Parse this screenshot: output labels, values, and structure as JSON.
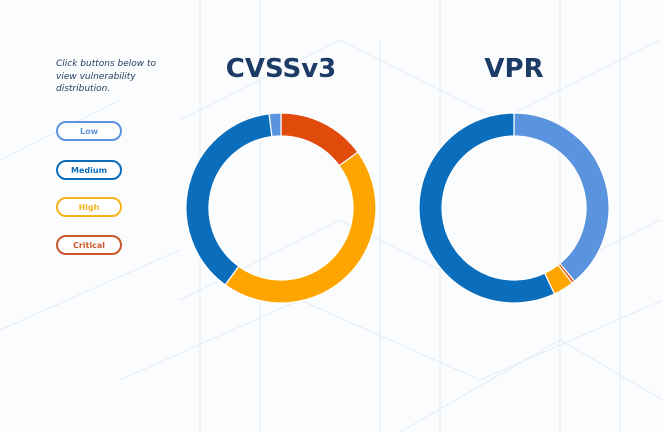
{
  "intro_text": "Click buttons below to view vulnerability distribution.",
  "buttons": [
    {
      "label": "Low",
      "color": "#5a93de"
    },
    {
      "label": "Medium",
      "color": "#0a6ebd"
    },
    {
      "label": "High",
      "color": "#f7b21b"
    },
    {
      "label": "Critical",
      "color": "#c9582b"
    }
  ],
  "chart_data": [
    {
      "type": "pie",
      "title": "CVSSv3",
      "donut": true,
      "slices": [
        {
          "category": "Critical",
          "value": 15,
          "color": "#e04a0a"
        },
        {
          "category": "High",
          "value": 45,
          "color": "#ffa500"
        },
        {
          "category": "Medium",
          "value": 38,
          "color": "#0a6ebd"
        },
        {
          "category": "Low",
          "value": 2,
          "color": "#5a93de"
        }
      ]
    },
    {
      "type": "pie",
      "title": "VPR",
      "donut": true,
      "slices": [
        {
          "category": "Low",
          "value": 39,
          "color": "#5a93de"
        },
        {
          "category": "Critical",
          "value": 0.5,
          "color": "#e04a0a"
        },
        {
          "category": "High",
          "value": 3.5,
          "color": "#ffa500"
        },
        {
          "category": "Medium",
          "value": 57,
          "color": "#0a6ebd"
        }
      ]
    }
  ]
}
